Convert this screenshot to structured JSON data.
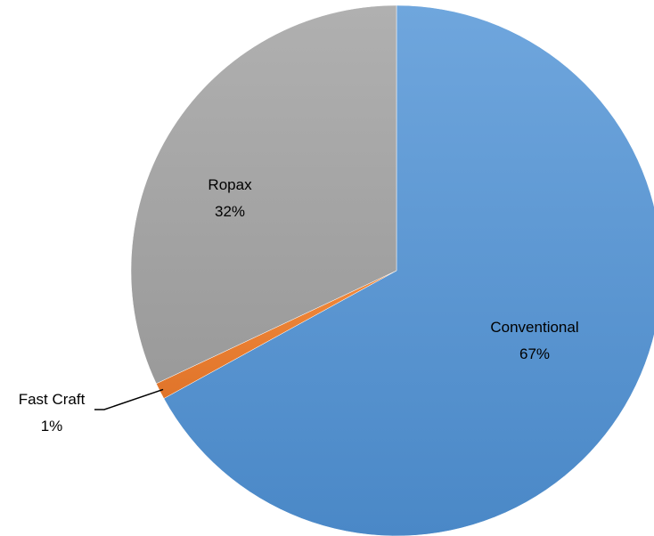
{
  "chart_data": {
    "type": "pie",
    "title": "",
    "start_angle_deg": 0,
    "direction": "clockwise",
    "slices": [
      {
        "label": "Conventional",
        "value": 67,
        "value_label": "67%",
        "color": "#5B9BD5"
      },
      {
        "label": "Fast Craft",
        "value": 1,
        "value_label": "1%",
        "color": "#ED7D31"
      },
      {
        "label": "Ropax",
        "value": 32,
        "value_label": "32%",
        "color": "#A5A5A5"
      }
    ],
    "legend": "none"
  }
}
